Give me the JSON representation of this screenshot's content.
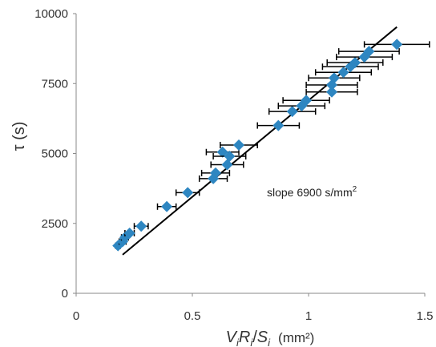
{
  "chart_data": {
    "type": "scatter",
    "xlabel_parts": {
      "v": "V",
      "v_sub": "i",
      "r": "R",
      "r_sub": "i",
      "sep": "/",
      "s": "S",
      "s_sub": "i",
      "units": "(mm²)"
    },
    "ylabel": "τ (s)",
    "xlim": [
      0,
      1.5
    ],
    "ylim": [
      0,
      10000
    ],
    "x_ticks": [
      0,
      0.5,
      1,
      1.5
    ],
    "x_tick_labels": [
      "0",
      "0.5",
      "1",
      "1.5"
    ],
    "y_ticks": [
      0,
      2500,
      5000,
      7500,
      10000
    ],
    "y_tick_labels": [
      "0",
      "2500",
      "5000",
      "7500",
      "10000"
    ],
    "grid": false,
    "annotation": {
      "prefix": "slope  6900 s/mm",
      "sup": "2"
    },
    "fit_line": {
      "slope": 6900,
      "x_start": 0.2,
      "x_end": 1.38
    },
    "marker_color": "#2e86c1",
    "line_color": "#000000",
    "errorbar_color": "#000000",
    "points": [
      {
        "x": 0.18,
        "y": 1700,
        "xerr": 0.01
      },
      {
        "x": 0.2,
        "y": 1850,
        "xerr": 0.015
      },
      {
        "x": 0.21,
        "y": 2000,
        "xerr": 0.015
      },
      {
        "x": 0.23,
        "y": 2150,
        "xerr": 0.02
      },
      {
        "x": 0.28,
        "y": 2400,
        "xerr": 0.03
      },
      {
        "x": 0.39,
        "y": 3100,
        "xerr": 0.04
      },
      {
        "x": 0.48,
        "y": 3600,
        "xerr": 0.05
      },
      {
        "x": 0.59,
        "y": 4100,
        "xerr": 0.06
      },
      {
        "x": 0.6,
        "y": 4300,
        "xerr": 0.06
      },
      {
        "x": 0.63,
        "y": 5050,
        "xerr": 0.07
      },
      {
        "x": 0.65,
        "y": 4600,
        "xerr": 0.07
      },
      {
        "x": 0.66,
        "y": 4900,
        "xerr": 0.07
      },
      {
        "x": 0.7,
        "y": 5300,
        "xerr": 0.08
      },
      {
        "x": 0.87,
        "y": 6000,
        "xerr": 0.09
      },
      {
        "x": 0.93,
        "y": 6500,
        "xerr": 0.1
      },
      {
        "x": 0.97,
        "y": 6700,
        "xerr": 0.1
      },
      {
        "x": 0.99,
        "y": 6900,
        "xerr": 0.1
      },
      {
        "x": 1.1,
        "y": 7200,
        "xerr": 0.11
      },
      {
        "x": 1.1,
        "y": 7450,
        "xerr": 0.11
      },
      {
        "x": 1.11,
        "y": 7700,
        "xerr": 0.11
      },
      {
        "x": 1.15,
        "y": 7900,
        "xerr": 0.12
      },
      {
        "x": 1.18,
        "y": 8100,
        "xerr": 0.12
      },
      {
        "x": 1.2,
        "y": 8250,
        "xerr": 0.12
      },
      {
        "x": 1.24,
        "y": 8450,
        "xerr": 0.12
      },
      {
        "x": 1.26,
        "y": 8650,
        "xerr": 0.13
      },
      {
        "x": 1.38,
        "y": 8900,
        "xerr": 0.14
      }
    ]
  }
}
